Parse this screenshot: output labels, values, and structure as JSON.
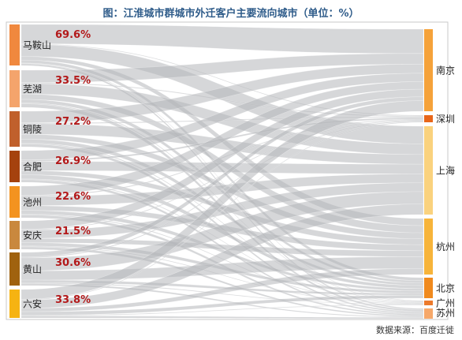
{
  "title": "图：江淮城市群城市外迁客户主要流向城市（单位：%）",
  "source_note": "数据来源：百度迁徙",
  "chart_data": {
    "type": "sankey",
    "sources": [
      {
        "name": "马鞍山",
        "value": "69.6%",
        "color": "#f0883e"
      },
      {
        "name": "芜湖",
        "value": "33.5%",
        "color": "#f4a46c"
      },
      {
        "name": "铜陵",
        "value": "27.2%",
        "color": "#c0602c"
      },
      {
        "name": "合肥",
        "value": "26.9%",
        "color": "#a5420e"
      },
      {
        "name": "池州",
        "value": "22.6%",
        "color": "#f39320"
      },
      {
        "name": "安庆",
        "value": "21.5%",
        "color": "#c9883e"
      },
      {
        "name": "黄山",
        "value": "30.6%",
        "color": "#a0620f"
      },
      {
        "name": "六安",
        "value": "33.8%",
        "color": "#f6b312"
      }
    ],
    "targets": [
      {
        "name": "南京",
        "color": "#f5a23a"
      },
      {
        "name": "深圳",
        "color": "#e8661a"
      },
      {
        "name": "上海",
        "color": "#fad27e"
      },
      {
        "name": "杭州",
        "color": "#f7b43a"
      },
      {
        "name": "北京",
        "color": "#f08a1e"
      },
      {
        "name": "广州",
        "color": "#ec7a2c"
      },
      {
        "name": "苏州",
        "color": "#f6a86a"
      }
    ],
    "value_color": "#b3191a",
    "link_color": "#b4b6ba"
  }
}
